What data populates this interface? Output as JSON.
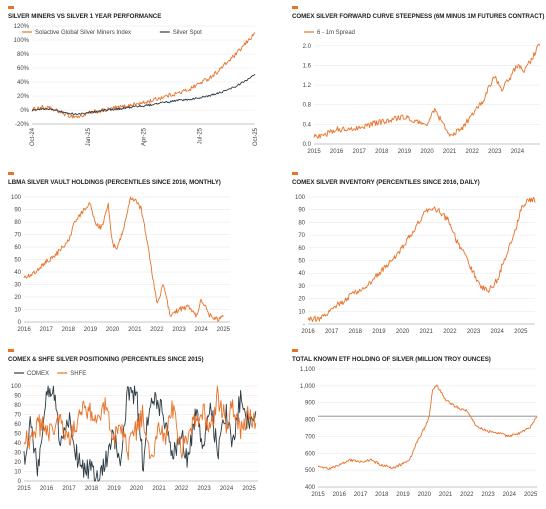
{
  "colors": {
    "orange": "#e8732a",
    "dark": "#2d3b45",
    "grid": "#e6e6e6",
    "ref": "#888888"
  },
  "chart_data": [
    {
      "id": "c1",
      "type": "line",
      "title": "SILVER MINERS VS SILVER 1 YEAR PERFORMANCE",
      "ylim": [
        -20,
        120
      ],
      "yticks": [
        "-20%",
        "0%",
        "20%",
        "40%",
        "60%",
        "80%",
        "100%",
        "120%"
      ],
      "yticks_v": [
        -20,
        0,
        20,
        40,
        60,
        80,
        100,
        120
      ],
      "xticks": [
        "Oct-24",
        "Jan-25",
        "Apr-25",
        "Jul-25",
        "Oct-25"
      ],
      "xlim": [
        0,
        12
      ],
      "xticks_v": [
        0,
        3,
        6,
        9,
        12
      ],
      "xtick_rotate": true,
      "legend": "top",
      "series": [
        {
          "name": "Solactive Global Silver Miners Index",
          "color": "#e8732a",
          "x": [
            0,
            0.5,
            1,
            1.5,
            2,
            2.5,
            3,
            3.5,
            4,
            4.5,
            5,
            5.5,
            6,
            6.5,
            7,
            7.5,
            8,
            8.5,
            9,
            9.5,
            10,
            10.5,
            11,
            11.5,
            12
          ],
          "y": [
            0,
            4,
            2,
            -3,
            -8,
            -10,
            -5,
            -2,
            0,
            3,
            5,
            8,
            10,
            14,
            18,
            22,
            25,
            30,
            38,
            45,
            55,
            68,
            80,
            95,
            110
          ],
          "noise": 3
        },
        {
          "name": "Silver Spot",
          "color": "#2d3b45",
          "x": [
            0,
            0.5,
            1,
            1.5,
            2,
            2.5,
            3,
            3.5,
            4,
            4.5,
            5,
            5.5,
            6,
            6.5,
            7,
            7.5,
            8,
            8.5,
            9,
            9.5,
            10,
            10.5,
            11,
            11.5,
            12
          ],
          "y": [
            0,
            2,
            1,
            -2,
            -5,
            -6,
            -4,
            -2,
            0,
            1,
            3,
            5,
            6,
            8,
            10,
            12,
            14,
            15,
            18,
            20,
            24,
            28,
            34,
            42,
            50
          ],
          "noise": 1.5
        }
      ]
    },
    {
      "id": "c2",
      "type": "line",
      "title": "COMEX SILVER FORWARD CURVE STEEPNESS (6M MINUS 1M FUTURES CONTRACT)",
      "ylim": [
        0,
        2.2
      ],
      "yticks": [
        "0.0",
        "0.4",
        "0.8",
        "1.2",
        "1.6",
        "2.0"
      ],
      "yticks_v": [
        0,
        0.4,
        0.8,
        1.2,
        1.6,
        2.0
      ],
      "xticks": [
        "2015",
        "2016",
        "2017",
        "2018",
        "2019",
        "2020",
        "2021",
        "2022",
        "2023",
        "2024"
      ],
      "xlim": [
        2015,
        2025
      ],
      "xticks_v": [
        2015,
        2016,
        2017,
        2018,
        2019,
        2020,
        2021,
        2022,
        2023,
        2024
      ],
      "legend": "top",
      "series": [
        {
          "name": "6 - 1m Spread",
          "color": "#e8732a",
          "x": [
            2015,
            2015.5,
            2016,
            2016.5,
            2017,
            2017.5,
            2018,
            2018.5,
            2019,
            2019.5,
            2020,
            2020.3,
            2020.6,
            2021,
            2021.5,
            2022,
            2022.5,
            2023,
            2023.3,
            2023.6,
            2024,
            2024.3,
            2024.6,
            2025
          ],
          "y": [
            0.15,
            0.2,
            0.3,
            0.28,
            0.35,
            0.4,
            0.45,
            0.5,
            0.55,
            0.45,
            0.4,
            0.7,
            0.5,
            0.15,
            0.3,
            0.6,
            0.9,
            1.4,
            1.1,
            1.3,
            1.6,
            1.5,
            1.7,
            2.05
          ],
          "noise": 0.06
        }
      ]
    },
    {
      "id": "c3",
      "type": "line",
      "title": "LBMA SILVER VAULT HOLDINGS (PERCENTILES SINCE 2016, MONTHLY)",
      "ylim": [
        0,
        100
      ],
      "yticks": [
        "0",
        "10",
        "20",
        "30",
        "40",
        "50",
        "60",
        "70",
        "80",
        "90",
        "100"
      ],
      "yticks_v": [
        0,
        10,
        20,
        30,
        40,
        50,
        60,
        70,
        80,
        90,
        100
      ],
      "xticks": [
        "2016",
        "2017",
        "2018",
        "2019",
        "2020",
        "2021",
        "2022",
        "2023",
        "2024",
        "2025"
      ],
      "xlim": [
        2016,
        2025.3
      ],
      "xticks_v": [
        2016,
        2017,
        2018,
        2019,
        2020,
        2021,
        2022,
        2023,
        2024,
        2025
      ],
      "legend": "none",
      "series": [
        {
          "name": "",
          "color": "#e8732a",
          "x": [
            2016,
            2016.5,
            2017,
            2017.5,
            2018,
            2018.3,
            2018.7,
            2019,
            2019.2,
            2019.5,
            2019.8,
            2020,
            2020.2,
            2020.5,
            2020.8,
            2021,
            2021.3,
            2021.6,
            2022,
            2022.3,
            2022.6,
            2023,
            2023.4,
            2023.8,
            2024,
            2024.4,
            2024.8,
            2025
          ],
          "y": [
            35,
            40,
            48,
            55,
            65,
            80,
            90,
            95,
            80,
            75,
            95,
            62,
            58,
            75,
            100,
            98,
            90,
            60,
            15,
            30,
            5,
            10,
            12,
            5,
            18,
            5,
            2,
            5
          ],
          "noise": 2
        }
      ]
    },
    {
      "id": "c4",
      "type": "line",
      "title": "COMEX SILVER INVENTORY (PERCENTILES SINCE 2016, DAILY)",
      "ylim": [
        0,
        100
      ],
      "yticks": [
        "-",
        "10",
        "20",
        "30",
        "40",
        "50",
        "60",
        "70",
        "80",
        "90",
        "100"
      ],
      "yticks_v": [
        0,
        10,
        20,
        30,
        40,
        50,
        60,
        70,
        80,
        90,
        100
      ],
      "xticks": [
        "2016",
        "2017",
        "2018",
        "2019",
        "2020",
        "2021",
        "2022",
        "2023",
        "2024",
        "2025"
      ],
      "xlim": [
        2016,
        2025.6
      ],
      "xticks_v": [
        2016,
        2017,
        2018,
        2019,
        2020,
        2021,
        2022,
        2023,
        2024,
        2025
      ],
      "legend": "none",
      "series": [
        {
          "name": "",
          "color": "#e8732a",
          "x": [
            2016,
            2016.5,
            2017,
            2017.5,
            2018,
            2018.5,
            2019,
            2019.5,
            2020,
            2020.5,
            2021,
            2021.3,
            2021.6,
            2022,
            2022.3,
            2022.6,
            2023,
            2023.3,
            2023.6,
            2024,
            2024.4,
            2024.8,
            2025,
            2025.3,
            2025.6
          ],
          "y": [
            5,
            3,
            12,
            18,
            25,
            30,
            40,
            50,
            60,
            75,
            90,
            92,
            88,
            80,
            65,
            55,
            40,
            30,
            25,
            35,
            55,
            75,
            90,
            97,
            98
          ],
          "noise": 2.5
        }
      ]
    },
    {
      "id": "c5",
      "type": "line",
      "title": "COMEX & SHFE SILVER POSITIONING (PERCENTILES SINCE 2015)",
      "ylim": [
        0,
        100
      ],
      "yticks": [
        "0",
        "10",
        "20",
        "30",
        "40",
        "50",
        "60",
        "70",
        "80",
        "90",
        "100"
      ],
      "yticks_v": [
        0,
        10,
        20,
        30,
        40,
        50,
        60,
        70,
        80,
        90,
        100
      ],
      "xticks": [
        "2015",
        "2016",
        "2017",
        "2018",
        "2019",
        "2020",
        "2021",
        "2022",
        "2023",
        "2024",
        "2025"
      ],
      "xlim": [
        2015,
        2025.4
      ],
      "xticks_v": [
        2015,
        2016,
        2017,
        2018,
        2019,
        2020,
        2021,
        2022,
        2023,
        2024,
        2025
      ],
      "legend": "top",
      "series": [
        {
          "name": "COMEX",
          "color": "#2d3b45",
          "x": [
            2015,
            2015.3,
            2015.6,
            2016,
            2016.3,
            2016.6,
            2017,
            2017.3,
            2017.6,
            2018,
            2018.3,
            2018.6,
            2019,
            2019.3,
            2019.6,
            2020,
            2020.3,
            2020.6,
            2021,
            2021.3,
            2021.6,
            2022,
            2022.3,
            2022.6,
            2023,
            2023.3,
            2023.6,
            2024,
            2024.3,
            2024.6,
            2025,
            2025.3
          ],
          "y": [
            20,
            60,
            10,
            90,
            95,
            40,
            70,
            30,
            15,
            10,
            5,
            20,
            50,
            10,
            95,
            90,
            15,
            90,
            80,
            60,
            30,
            50,
            20,
            70,
            40,
            80,
            30,
            70,
            40,
            85,
            60,
            70
          ],
          "noise": 12
        },
        {
          "name": "SHFE",
          "color": "#e8732a",
          "x": [
            2015,
            2015.3,
            2015.6,
            2016,
            2016.3,
            2016.6,
            2017,
            2017.3,
            2017.6,
            2018,
            2018.3,
            2018.6,
            2019,
            2019.3,
            2019.6,
            2020,
            2020.3,
            2020.6,
            2021,
            2021.3,
            2021.6,
            2022,
            2022.3,
            2022.6,
            2023,
            2023.3,
            2023.6,
            2024,
            2024.3,
            2024.6,
            2025,
            2025.3
          ],
          "y": [
            50,
            40,
            60,
            55,
            45,
            70,
            40,
            60,
            80,
            70,
            60,
            80,
            40,
            60,
            30,
            55,
            70,
            20,
            60,
            40,
            80,
            30,
            50,
            60,
            70,
            50,
            90,
            60,
            80,
            50,
            70,
            60
          ],
          "noise": 12
        }
      ]
    },
    {
      "id": "c6",
      "type": "line",
      "title": "TOTAL KNOWN ETF HOLDING OF SILVER (MILLION TROY OUNCES)",
      "ylim": [
        400,
        1100
      ],
      "yticks": [
        "400",
        "500",
        "600",
        "700",
        "800",
        "900",
        "1,000",
        "1,100"
      ],
      "yticks_v": [
        400,
        500,
        600,
        700,
        800,
        900,
        1000,
        1100
      ],
      "xticks": [
        "2015",
        "2016",
        "2017",
        "2018",
        "2019",
        "2020",
        "2021",
        "2022",
        "2023",
        "2024",
        "2025"
      ],
      "xlim": [
        2015,
        2025.3
      ],
      "xticks_v": [
        2015,
        2016,
        2017,
        2018,
        2019,
        2020,
        2021,
        2022,
        2023,
        2024,
        2025
      ],
      "legend": "none",
      "reference_line": 820,
      "series": [
        {
          "name": "",
          "color": "#e8732a",
          "x": [
            2015,
            2015.5,
            2016,
            2016.5,
            2017,
            2017.5,
            2018,
            2018.5,
            2019,
            2019.3,
            2019.6,
            2020,
            2020.2,
            2020.4,
            2020.6,
            2021,
            2021.4,
            2021.8,
            2022,
            2022.4,
            2022.8,
            2023,
            2023.5,
            2024,
            2024.5,
            2025,
            2025.3
          ],
          "y": [
            520,
            510,
            530,
            560,
            550,
            560,
            530,
            510,
            540,
            560,
            650,
            750,
            800,
            980,
            1000,
            920,
            880,
            860,
            850,
            770,
            740,
            730,
            720,
            700,
            720,
            760,
            820
          ],
          "noise": 8
        }
      ]
    }
  ]
}
